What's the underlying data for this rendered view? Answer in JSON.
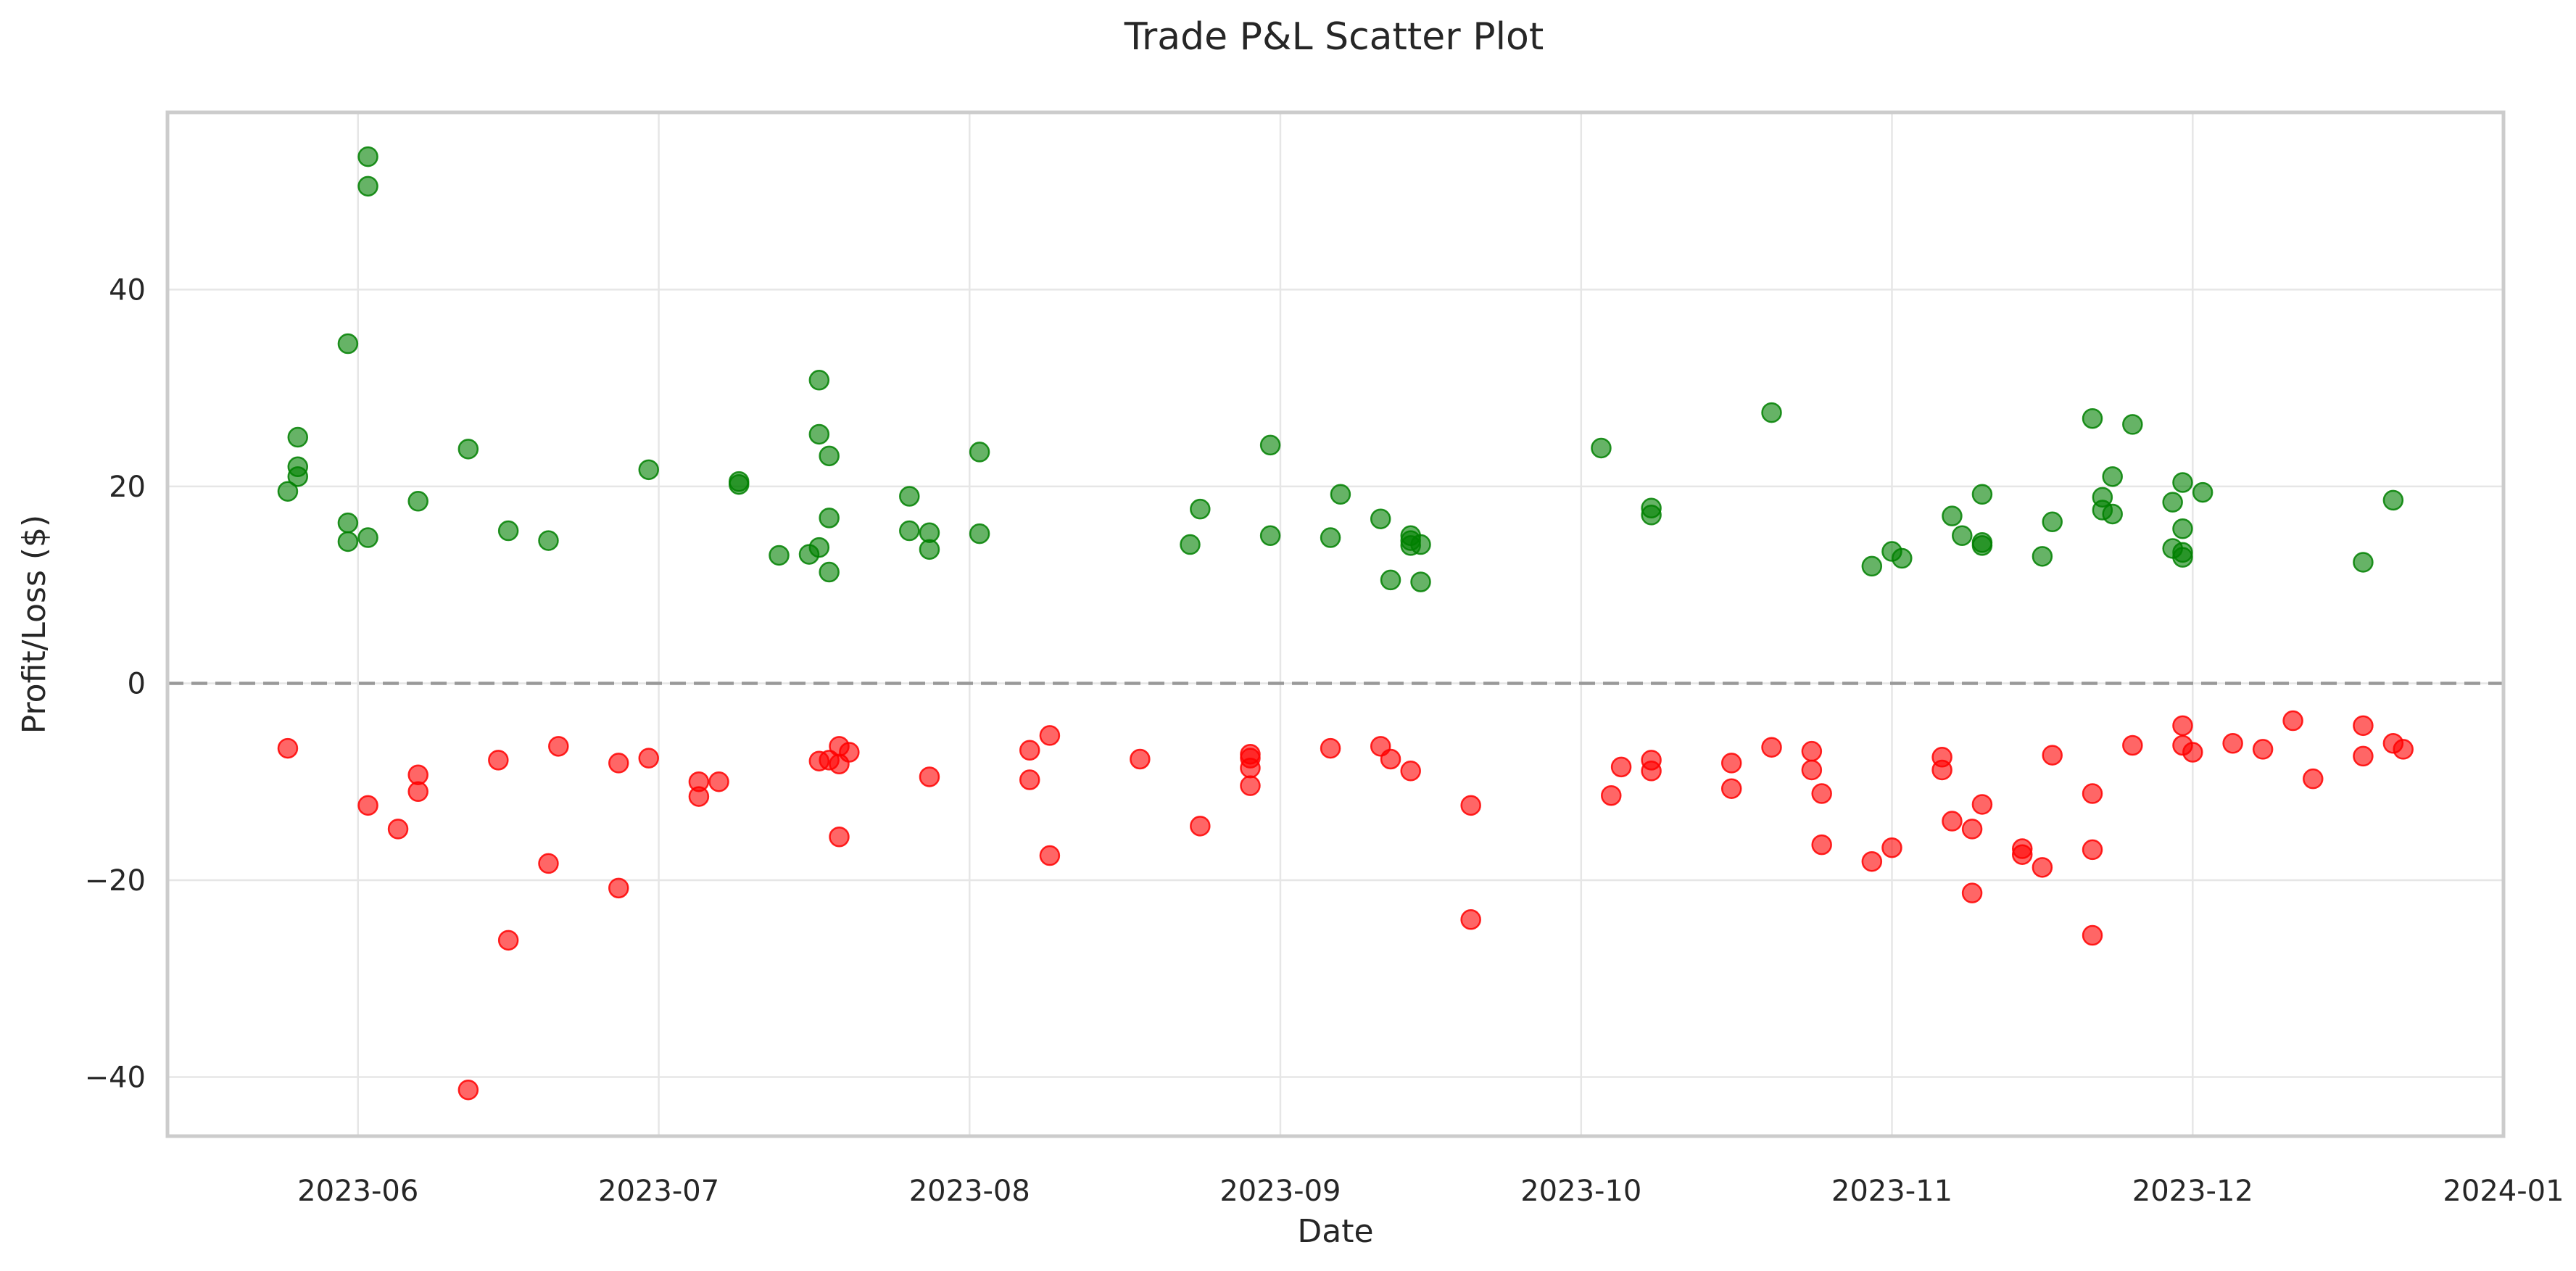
{
  "chart_data": {
    "type": "scatter",
    "title": "Trade P&L Scatter Plot",
    "xlabel": "Date",
    "ylabel": "Profit/Loss ($)",
    "x_axis": "date",
    "xlim": [
      "2023-05-13",
      "2024-01-01"
    ],
    "ylim": [
      -46,
      58
    ],
    "xticks": [
      "2023-06",
      "2023-07",
      "2023-08",
      "2023-09",
      "2023-10",
      "2023-11",
      "2023-12",
      "2024-01"
    ],
    "xtick_dates": [
      "2023-06-01",
      "2023-07-01",
      "2023-08-01",
      "2023-09-01",
      "2023-10-01",
      "2023-11-01",
      "2023-12-01",
      "2024-01-01"
    ],
    "yticks": [
      -40,
      -20,
      0,
      20,
      40
    ],
    "ytick_labels": [
      "−40",
      "−20",
      "0",
      "20",
      "40"
    ],
    "grid": true,
    "reference_line": {
      "y": 0,
      "style": "dashed",
      "color": "#999999"
    },
    "marker_alpha": 0.6,
    "series": [
      {
        "color": "#008000",
        "points": [
          [
            "2023-05-25",
            19.5
          ],
          [
            "2023-05-26",
            21
          ],
          [
            "2023-05-26",
            22
          ],
          [
            "2023-05-26",
            25
          ],
          [
            "2023-05-31",
            34.5
          ],
          [
            "2023-05-31",
            16.3
          ],
          [
            "2023-05-31",
            14.4
          ],
          [
            "2023-06-02",
            53.5
          ],
          [
            "2023-06-02",
            50.5
          ],
          [
            "2023-06-02",
            14.8
          ],
          [
            "2023-06-07",
            18.5
          ],
          [
            "2023-06-12",
            23.8
          ],
          [
            "2023-06-16",
            15.5
          ],
          [
            "2023-06-20",
            14.5
          ],
          [
            "2023-06-30",
            21.7
          ],
          [
            "2023-07-09",
            20.5
          ],
          [
            "2023-07-09",
            20.2
          ],
          [
            "2023-07-13",
            13
          ],
          [
            "2023-07-16",
            13.1
          ],
          [
            "2023-07-17",
            30.8
          ],
          [
            "2023-07-17",
            25.3
          ],
          [
            "2023-07-17",
            13.8
          ],
          [
            "2023-07-18",
            23.1
          ],
          [
            "2023-07-18",
            16.8
          ],
          [
            "2023-07-18",
            11.3
          ],
          [
            "2023-07-26",
            19
          ],
          [
            "2023-07-26",
            15.5
          ],
          [
            "2023-07-28",
            15.3
          ],
          [
            "2023-07-28",
            13.6
          ],
          [
            "2023-08-02",
            23.5
          ],
          [
            "2023-08-02",
            15.2
          ],
          [
            "2023-08-23",
            14.1
          ],
          [
            "2023-08-24",
            17.7
          ],
          [
            "2023-08-31",
            24.2
          ],
          [
            "2023-08-31",
            15
          ],
          [
            "2023-09-06",
            14.8
          ],
          [
            "2023-09-07",
            19.2
          ],
          [
            "2023-09-11",
            16.7
          ],
          [
            "2023-09-12",
            10.5
          ],
          [
            "2023-09-14",
            15
          ],
          [
            "2023-09-14",
            14.5
          ],
          [
            "2023-09-14",
            14
          ],
          [
            "2023-09-15",
            14.1
          ],
          [
            "2023-09-15",
            10.3
          ],
          [
            "2023-10-03",
            23.9
          ],
          [
            "2023-10-08",
            17.8
          ],
          [
            "2023-10-08",
            17.1
          ],
          [
            "2023-10-20",
            27.5
          ],
          [
            "2023-10-30",
            11.9
          ],
          [
            "2023-11-01",
            13.4
          ],
          [
            "2023-11-02",
            12.7
          ],
          [
            "2023-11-07",
            17
          ],
          [
            "2023-11-08",
            15
          ],
          [
            "2023-11-10",
            19.2
          ],
          [
            "2023-11-10",
            14.3
          ],
          [
            "2023-11-10",
            14
          ],
          [
            "2023-11-16",
            12.9
          ],
          [
            "2023-11-17",
            16.4
          ],
          [
            "2023-11-21",
            26.9
          ],
          [
            "2023-11-22",
            18.9
          ],
          [
            "2023-11-22",
            17.6
          ],
          [
            "2023-11-23",
            21
          ],
          [
            "2023-11-23",
            17.2
          ],
          [
            "2023-11-25",
            26.3
          ],
          [
            "2023-11-29",
            18.4
          ],
          [
            "2023-11-29",
            13.7
          ],
          [
            "2023-11-30",
            20.4
          ],
          [
            "2023-11-30",
            15.7
          ],
          [
            "2023-11-30",
            13.3
          ],
          [
            "2023-11-30",
            12.8
          ],
          [
            "2023-12-02",
            19.4
          ],
          [
            "2023-12-18",
            12.3
          ],
          [
            "2023-12-21",
            18.6
          ]
        ]
      },
      {
        "color": "#ff0000",
        "points": [
          [
            "2023-05-25",
            -6.6
          ],
          [
            "2023-06-02",
            -12.4
          ],
          [
            "2023-06-05",
            -14.8
          ],
          [
            "2023-06-07",
            -9.3
          ],
          [
            "2023-06-07",
            -11
          ],
          [
            "2023-06-12",
            -41.3
          ],
          [
            "2023-06-15",
            -7.8
          ],
          [
            "2023-06-16",
            -26.1
          ],
          [
            "2023-06-20",
            -18.3
          ],
          [
            "2023-06-21",
            -6.4
          ],
          [
            "2023-06-27",
            -8.1
          ],
          [
            "2023-06-27",
            -20.8
          ],
          [
            "2023-06-30",
            -7.6
          ],
          [
            "2023-07-05",
            -10
          ],
          [
            "2023-07-05",
            -11.5
          ],
          [
            "2023-07-07",
            -10
          ],
          [
            "2023-07-17",
            -7.9
          ],
          [
            "2023-07-18",
            -7.8
          ],
          [
            "2023-07-19",
            -6.4
          ],
          [
            "2023-07-19",
            -8.2
          ],
          [
            "2023-07-19",
            -15.6
          ],
          [
            "2023-07-20",
            -7
          ],
          [
            "2023-07-28",
            -9.5
          ],
          [
            "2023-08-07",
            -6.8
          ],
          [
            "2023-08-07",
            -9.8
          ],
          [
            "2023-08-09",
            -5.3
          ],
          [
            "2023-08-09",
            -17.5
          ],
          [
            "2023-08-18",
            -7.7
          ],
          [
            "2023-08-24",
            -14.5
          ],
          [
            "2023-08-29",
            -7.2
          ],
          [
            "2023-08-29",
            -7.6
          ],
          [
            "2023-08-29",
            -8.6
          ],
          [
            "2023-08-29",
            -10.4
          ],
          [
            "2023-09-06",
            -6.6
          ],
          [
            "2023-09-11",
            -6.4
          ],
          [
            "2023-09-12",
            -7.7
          ],
          [
            "2023-09-14",
            -8.9
          ],
          [
            "2023-09-20",
            -12.4
          ],
          [
            "2023-09-20",
            -24
          ],
          [
            "2023-10-04",
            -11.4
          ],
          [
            "2023-10-05",
            -8.5
          ],
          [
            "2023-10-08",
            -7.8
          ],
          [
            "2023-10-08",
            -8.9
          ],
          [
            "2023-10-16",
            -8.1
          ],
          [
            "2023-10-16",
            -10.7
          ],
          [
            "2023-10-20",
            -6.5
          ],
          [
            "2023-10-24",
            -6.9
          ],
          [
            "2023-10-24",
            -8.8
          ],
          [
            "2023-10-25",
            -11.2
          ],
          [
            "2023-10-25",
            -16.4
          ],
          [
            "2023-10-30",
            -18.1
          ],
          [
            "2023-11-01",
            -16.7
          ],
          [
            "2023-11-06",
            -7.5
          ],
          [
            "2023-11-06",
            -8.8
          ],
          [
            "2023-11-07",
            -14
          ],
          [
            "2023-11-09",
            -14.8
          ],
          [
            "2023-11-09",
            -21.3
          ],
          [
            "2023-11-10",
            -12.3
          ],
          [
            "2023-11-14",
            -16.8
          ],
          [
            "2023-11-14",
            -17.4
          ],
          [
            "2023-11-16",
            -18.7
          ],
          [
            "2023-11-17",
            -7.3
          ],
          [
            "2023-11-21",
            -11.2
          ],
          [
            "2023-11-21",
            -16.9
          ],
          [
            "2023-11-21",
            -25.6
          ],
          [
            "2023-11-25",
            -6.3
          ],
          [
            "2023-11-30",
            -4.3
          ],
          [
            "2023-11-30",
            -6.3
          ],
          [
            "2023-12-01",
            -7
          ],
          [
            "2023-12-05",
            -6.1
          ],
          [
            "2023-12-08",
            -6.7
          ],
          [
            "2023-12-11",
            -3.8
          ],
          [
            "2023-12-13",
            -9.7
          ],
          [
            "2023-12-18",
            -4.3
          ],
          [
            "2023-12-18",
            -7.4
          ],
          [
            "2023-12-21",
            -6.1
          ],
          [
            "2023-12-22",
            -6.7
          ]
        ]
      }
    ]
  }
}
